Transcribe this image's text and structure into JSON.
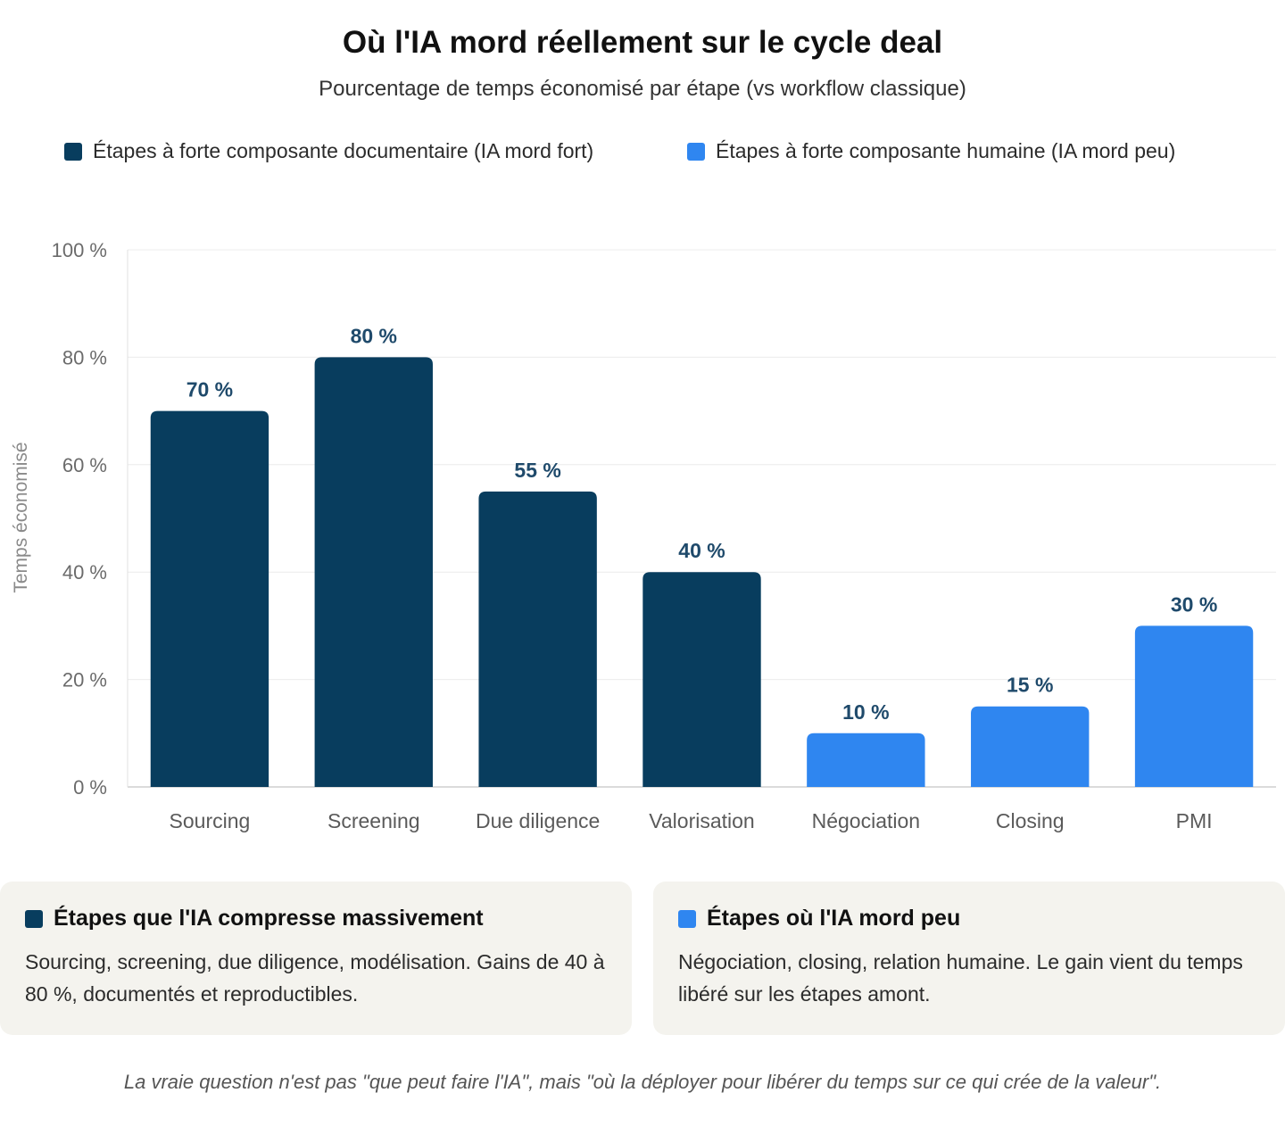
{
  "header": {
    "title": "Où l'IA mord réellement sur le cycle deal",
    "subtitle": "Pourcentage de temps économisé par étape (vs workflow classique)"
  },
  "colors": {
    "documentary": "#083d5e",
    "human": "#2f86f0"
  },
  "legend": {
    "items": [
      {
        "label": "Étapes à forte composante documentaire (IA mord fort)",
        "color": "#083d5e"
      },
      {
        "label": "Étapes à forte composante humaine (IA mord peu)",
        "color": "#2f86f0"
      }
    ]
  },
  "chart_data": {
    "type": "bar",
    "title": "",
    "xlabel": "",
    "ylabel": "Temps économisé",
    "ylim": [
      0,
      100
    ],
    "yticks": [
      0,
      20,
      40,
      60,
      80,
      100
    ],
    "ytick_labels": [
      "0 %",
      "20 %",
      "40 %",
      "60 %",
      "80 %",
      "100 %"
    ],
    "categories": [
      "Sourcing",
      "Screening",
      "Due diligence",
      "Valorisation",
      "Négociation",
      "Closing",
      "PMI"
    ],
    "values": [
      70,
      80,
      55,
      40,
      10,
      15,
      30
    ],
    "value_labels": [
      "70 %",
      "80 %",
      "55 %",
      "40 %",
      "10 %",
      "15 %",
      "30 %"
    ],
    "bar_groups": [
      "documentary",
      "documentary",
      "documentary",
      "documentary",
      "human",
      "human",
      "human"
    ],
    "grid": true,
    "legend_position": "top"
  },
  "cards": {
    "left": {
      "title": "Étapes que l'IA compresse massivement",
      "body": "Sourcing, screening, due diligence, modélisation. Gains de 40 à 80 %, documentés et reproductibles.",
      "color": "#083d5e"
    },
    "right": {
      "title": "Étapes où l'IA mord peu",
      "body": "Négociation, closing, relation humaine. Le gain vient du temps libéré sur les étapes amont.",
      "color": "#2f86f0"
    }
  },
  "footer": {
    "note": "La vraie question n'est pas \"que peut faire l'IA\", mais \"où la déployer pour libérer du temps sur ce qui crée de la valeur\"."
  }
}
